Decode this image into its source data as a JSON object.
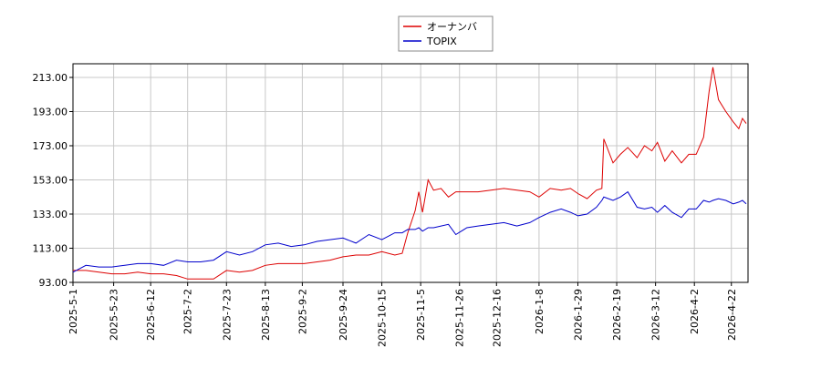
{
  "chart_data": {
    "type": "line",
    "x": [
      "2025-5-1",
      "2025-5-8",
      "2025-5-15",
      "2025-5-22",
      "2025-5-29",
      "2025-6-5",
      "2025-6-12",
      "2025-6-19",
      "2025-6-26",
      "2025-7-2",
      "2025-7-9",
      "2025-7-16",
      "2025-7-23",
      "2025-7-30",
      "2025-8-6",
      "2025-8-13",
      "2025-8-20",
      "2025-8-27",
      "2025-9-3",
      "2025-9-10",
      "2025-9-17",
      "2025-9-24",
      "2025-10-1",
      "2025-10-8",
      "2025-10-15",
      "2025-10-22",
      "2025-10-26",
      "2025-10-29",
      "2025-11-2",
      "2025-11-4",
      "2025-11-6",
      "2025-11-9",
      "2025-11-12",
      "2025-11-16",
      "2025-11-20",
      "2025-11-24",
      "2025-11-30",
      "2025-12-6",
      "2025-12-13",
      "2025-12-20",
      "2025-12-27",
      "2026-1-3",
      "2026-1-8",
      "2026-1-14",
      "2026-1-20",
      "2026-1-25",
      "2026-1-29",
      "2026-2-3",
      "2026-2-8",
      "2026-2-11",
      "2026-2-12",
      "2026-2-17",
      "2026-2-21",
      "2026-2-25",
      "2026-3-2",
      "2026-3-6",
      "2026-3-10",
      "2026-3-13",
      "2026-3-17",
      "2026-3-21",
      "2026-3-26",
      "2026-3-30",
      "2026-4-3",
      "2026-4-7",
      "2026-4-10",
      "2026-4-12",
      "2026-4-15",
      "2026-4-19",
      "2026-4-23",
      "2026-4-26",
      "2026-4-28",
      "2026-4-30"
    ],
    "series": [
      {
        "name": "オーナンバ",
        "color": "#dd0000",
        "values": [
          100,
          100,
          99,
          98,
          98,
          99,
          98,
          98,
          97,
          95,
          95,
          95,
          100,
          99,
          100,
          103,
          104,
          104,
          104,
          105,
          106,
          108,
          109,
          109,
          111,
          109,
          110,
          122,
          135,
          146,
          134,
          153,
          147,
          148,
          143,
          146,
          146,
          146,
          147,
          148,
          147,
          146,
          143,
          148,
          147,
          148,
          145,
          142,
          147,
          148,
          177,
          163,
          168,
          172,
          166,
          173,
          170,
          175,
          164,
          170,
          163,
          168,
          168,
          178,
          205,
          219,
          200,
          193,
          187,
          183,
          189,
          186
        ]
      },
      {
        "name": "TOPIX",
        "color": "#0000cc",
        "values": [
          99,
          103,
          102,
          102,
          103,
          104,
          104,
          103,
          106,
          105,
          105,
          106,
          111,
          109,
          111,
          115,
          116,
          114,
          115,
          117,
          118,
          119,
          116,
          121,
          118,
          122,
          122,
          124,
          124,
          125,
          123,
          125,
          125,
          126,
          127,
          121,
          125,
          126,
          127,
          128,
          126,
          128,
          131,
          134,
          136,
          134,
          132,
          133,
          137,
          141,
          143,
          141,
          143,
          146,
          137,
          136,
          137,
          134,
          138,
          134,
          131,
          136,
          136,
          141,
          140,
          141,
          142,
          141,
          139,
          140,
          141,
          139
        ]
      }
    ],
    "xlim": [
      "2025-5-1",
      "2026-5-1"
    ],
    "xticks": [
      "2025-5-1",
      "2025-5-23",
      "2025-6-12",
      "2025-7-2",
      "2025-7-23",
      "2025-8-13",
      "2025-9-2",
      "2025-9-24",
      "2025-10-15",
      "2025-11-5",
      "2025-11-26",
      "2025-12-16",
      "2026-1-8",
      "2026-1-29",
      "2026-2-19",
      "2026-3-12",
      "2026-4-2",
      "2026-4-22"
    ],
    "ylim": [
      93,
      221
    ],
    "yticks": [
      {
        "value": 93,
        "label": "93.00"
      },
      {
        "value": 113,
        "label": "113.00"
      },
      {
        "value": 133,
        "label": "133.00"
      },
      {
        "value": 153,
        "label": "153.00"
      },
      {
        "value": 173,
        "label": "173.00"
      },
      {
        "value": 193,
        "label": "193.00"
      },
      {
        "value": 213,
        "label": "213.00"
      }
    ],
    "grid": true,
    "legend": "top"
  }
}
